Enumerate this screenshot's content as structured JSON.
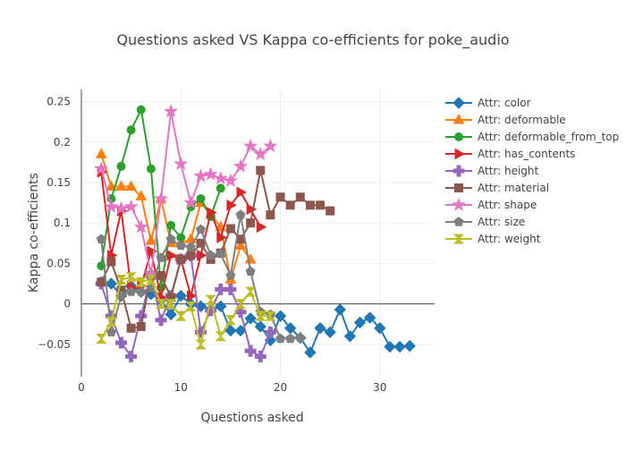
{
  "chart_data": {
    "type": "line",
    "title": "Questions asked VS Kappa co-efficients for poke_audio",
    "xlabel": "Questions asked",
    "ylabel": "Kappa co-efficients",
    "xlim": [
      0,
      35.5
    ],
    "ylim": [
      -0.09,
      0.265
    ],
    "xticks": [
      0,
      10,
      20,
      30
    ],
    "yticks": [
      -0.05,
      0,
      0.05,
      0.1,
      0.15,
      0.2,
      0.25
    ],
    "ytick_labels": [
      "−0.05",
      "0",
      "0.05",
      "0.1",
      "0.15",
      "0.2",
      "0.25"
    ],
    "grid": true,
    "legend_position": "right",
    "series": [
      {
        "name": "Attr: color",
        "color": "#1f77b4",
        "marker": "diamond",
        "x": [
          2,
          3,
          4,
          5,
          6,
          7,
          8,
          9,
          10,
          11,
          12,
          13,
          14,
          15,
          16,
          17,
          18,
          19,
          20,
          21,
          22,
          23,
          24,
          25,
          26,
          27,
          28,
          29,
          30,
          31,
          32,
          33
        ],
        "y": [
          0.027,
          0.025,
          0.01,
          0.022,
          0.015,
          0.012,
          0.005,
          -0.013,
          0.01,
          0,
          -0.003,
          -0.007,
          -0.003,
          -0.033,
          -0.033,
          -0.018,
          -0.028,
          -0.045,
          -0.015,
          -0.03,
          -0.042,
          -0.06,
          -0.03,
          -0.035,
          -0.007,
          -0.04,
          -0.023,
          -0.017,
          -0.03,
          -0.053,
          -0.053,
          -0.052
        ]
      },
      {
        "name": "Attr: deformable",
        "color": "#ff7f0e",
        "marker": "triangle-up",
        "x": [
          2,
          3,
          4,
          5,
          6,
          7,
          8,
          9,
          10,
          11,
          12,
          13,
          14,
          15,
          16,
          17
        ],
        "y": [
          0.185,
          0.145,
          0.145,
          0.145,
          0.133,
          0.078,
          0.13,
          0.075,
          0.075,
          0.08,
          0.125,
          0.11,
          0.095,
          0.03,
          0.072,
          0.055
        ]
      },
      {
        "name": "Attr: deformable_from_top",
        "color": "#2ca02c",
        "marker": "circle",
        "x": [
          2,
          3,
          4,
          5,
          6,
          7,
          8,
          9,
          10,
          11,
          12,
          13,
          14
        ],
        "y": [
          0.047,
          0.13,
          0.17,
          0.215,
          0.24,
          0.167,
          0.02,
          0.097,
          0.082,
          0.12,
          0.13,
          0.108,
          0.143
        ]
      },
      {
        "name": "Attr: has_contents",
        "color": "#d62728",
        "marker": "triangle-right",
        "x": [
          2,
          3,
          4,
          5,
          6,
          7,
          8,
          9,
          10,
          11,
          12,
          13,
          14,
          15,
          16,
          17,
          18
        ],
        "y": [
          0.163,
          0.06,
          0.115,
          0.02,
          0.022,
          0.065,
          0.008,
          0.06,
          0.055,
          0.01,
          0.06,
          0.113,
          0.082,
          0.122,
          0.138,
          0.117,
          0.095
        ]
      },
      {
        "name": "Attr: height",
        "color": "#9467bd",
        "marker": "cross",
        "x": [
          2,
          3,
          4,
          5,
          6,
          7,
          8,
          9,
          10,
          11,
          12,
          13,
          14,
          15,
          16,
          17,
          18,
          19
        ],
        "y": [
          0.025,
          -0.015,
          -0.048,
          -0.065,
          -0.015,
          0.035,
          -0.02,
          0.01,
          0.055,
          0.06,
          -0.035,
          -0.008,
          0.018,
          0.018,
          -0.01,
          -0.058,
          -0.065,
          -0.035
        ]
      },
      {
        "name": "Attr: material",
        "color": "#8c564b",
        "marker": "square",
        "x": [
          2,
          3,
          4,
          5,
          6,
          7,
          8,
          9,
          10,
          11,
          12,
          13,
          14,
          15,
          16,
          17,
          18,
          19,
          20,
          21,
          22,
          23,
          24,
          25
        ],
        "y": [
          0.027,
          0.052,
          0.017,
          -0.03,
          -0.028,
          0.035,
          0.035,
          0.008,
          0.055,
          0.06,
          0.075,
          0.055,
          0.063,
          0.093,
          0.08,
          0.1,
          0.165,
          0.11,
          0.132,
          0.122,
          0.132,
          0.122,
          0.122,
          0.115
        ]
      },
      {
        "name": "Attr: shape",
        "color": "#e377c2",
        "marker": "star",
        "x": [
          2,
          3,
          4,
          5,
          6,
          7,
          8,
          9,
          10,
          11,
          12,
          13,
          14,
          15,
          16,
          17,
          18,
          19
        ],
        "y": [
          0.167,
          0.12,
          0.118,
          0.12,
          0.095,
          0.037,
          0.13,
          0.238,
          0.173,
          0.125,
          0.158,
          0.16,
          0.155,
          0.152,
          0.17,
          0.195,
          0.185,
          0.195
        ]
      },
      {
        "name": "Attr: size",
        "color": "#7f7f7f",
        "marker": "pentagon",
        "x": [
          2,
          3,
          4,
          5,
          6,
          7,
          8,
          9,
          10,
          11,
          12,
          13,
          14,
          15,
          16,
          17,
          18,
          19,
          20,
          21,
          22
        ],
        "y": [
          0.08,
          -0.035,
          0.01,
          0.015,
          0.015,
          0.02,
          0.057,
          0.08,
          0.072,
          0.07,
          0.092,
          0.06,
          0.062,
          0.035,
          0.11,
          0.04,
          -0.01,
          -0.013,
          -0.043,
          -0.043,
          -0.042
        ]
      },
      {
        "name": "Attr: weight",
        "color": "#bcbd22",
        "marker": "hourglass",
        "x": [
          2,
          3,
          4,
          5,
          6,
          7,
          8,
          9,
          10,
          11,
          12,
          13,
          14,
          15,
          16,
          17,
          18,
          19
        ],
        "y": [
          -0.043,
          -0.022,
          0.03,
          0.033,
          0.027,
          0.03,
          0,
          0,
          -0.015,
          -0.003,
          -0.05,
          0.005,
          -0.04,
          -0.02,
          0,
          0.015,
          -0.015,
          -0.015
        ]
      }
    ]
  }
}
